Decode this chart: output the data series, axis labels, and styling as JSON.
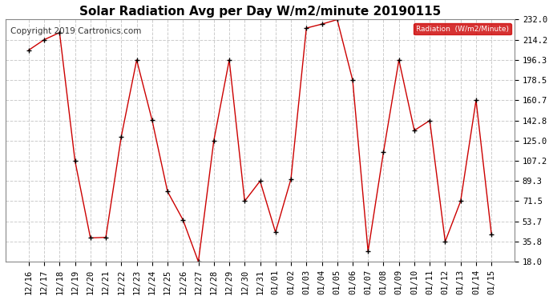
{
  "title": "Solar Radiation Avg per Day W/m2/minute 20190115",
  "copyright": "Copyright 2019 Cartronics.com",
  "legend_label": "Radiation  (W/m2/Minute)",
  "labels": [
    "12/16",
    "12/17",
    "12/18",
    "12/19",
    "12/20",
    "12/21",
    "12/22",
    "12/23",
    "12/24",
    "12/25",
    "12/26",
    "12/27",
    "12/28",
    "12/29",
    "12/30",
    "12/31",
    "01/01",
    "01/02",
    "01/03",
    "01/04",
    "01/05",
    "01/06",
    "01/07",
    "01/08",
    "01/09",
    "01/10",
    "01/11",
    "01/12",
    "01/13",
    "01/14",
    "01/15"
  ],
  "values": [
    205.0,
    214.2,
    220.5,
    107.2,
    39.0,
    39.5,
    128.5,
    196.3,
    143.0,
    80.0,
    55.0,
    18.0,
    125.0,
    196.3,
    71.5,
    89.3,
    44.0,
    91.0,
    224.5,
    228.0,
    232.0,
    178.5,
    27.0,
    115.0,
    196.3,
    134.0,
    142.8,
    35.8,
    71.5,
    160.7,
    42.0
  ],
  "ylim": [
    18.0,
    232.0
  ],
  "yticks": [
    18.0,
    35.8,
    53.7,
    71.5,
    89.3,
    107.2,
    125.0,
    142.8,
    160.7,
    178.5,
    196.3,
    214.2,
    232.0
  ],
  "line_color": "#cc0000",
  "marker_color": "#000000",
  "plot_bg_color": "#ffffff",
  "fig_bg_color": "#ffffff",
  "grid_color": "#cccccc",
  "legend_bg": "#cc0000",
  "legend_text_color": "#ffffff",
  "title_fontsize": 11,
  "tick_fontsize": 7.5,
  "copyright_fontsize": 7.5
}
